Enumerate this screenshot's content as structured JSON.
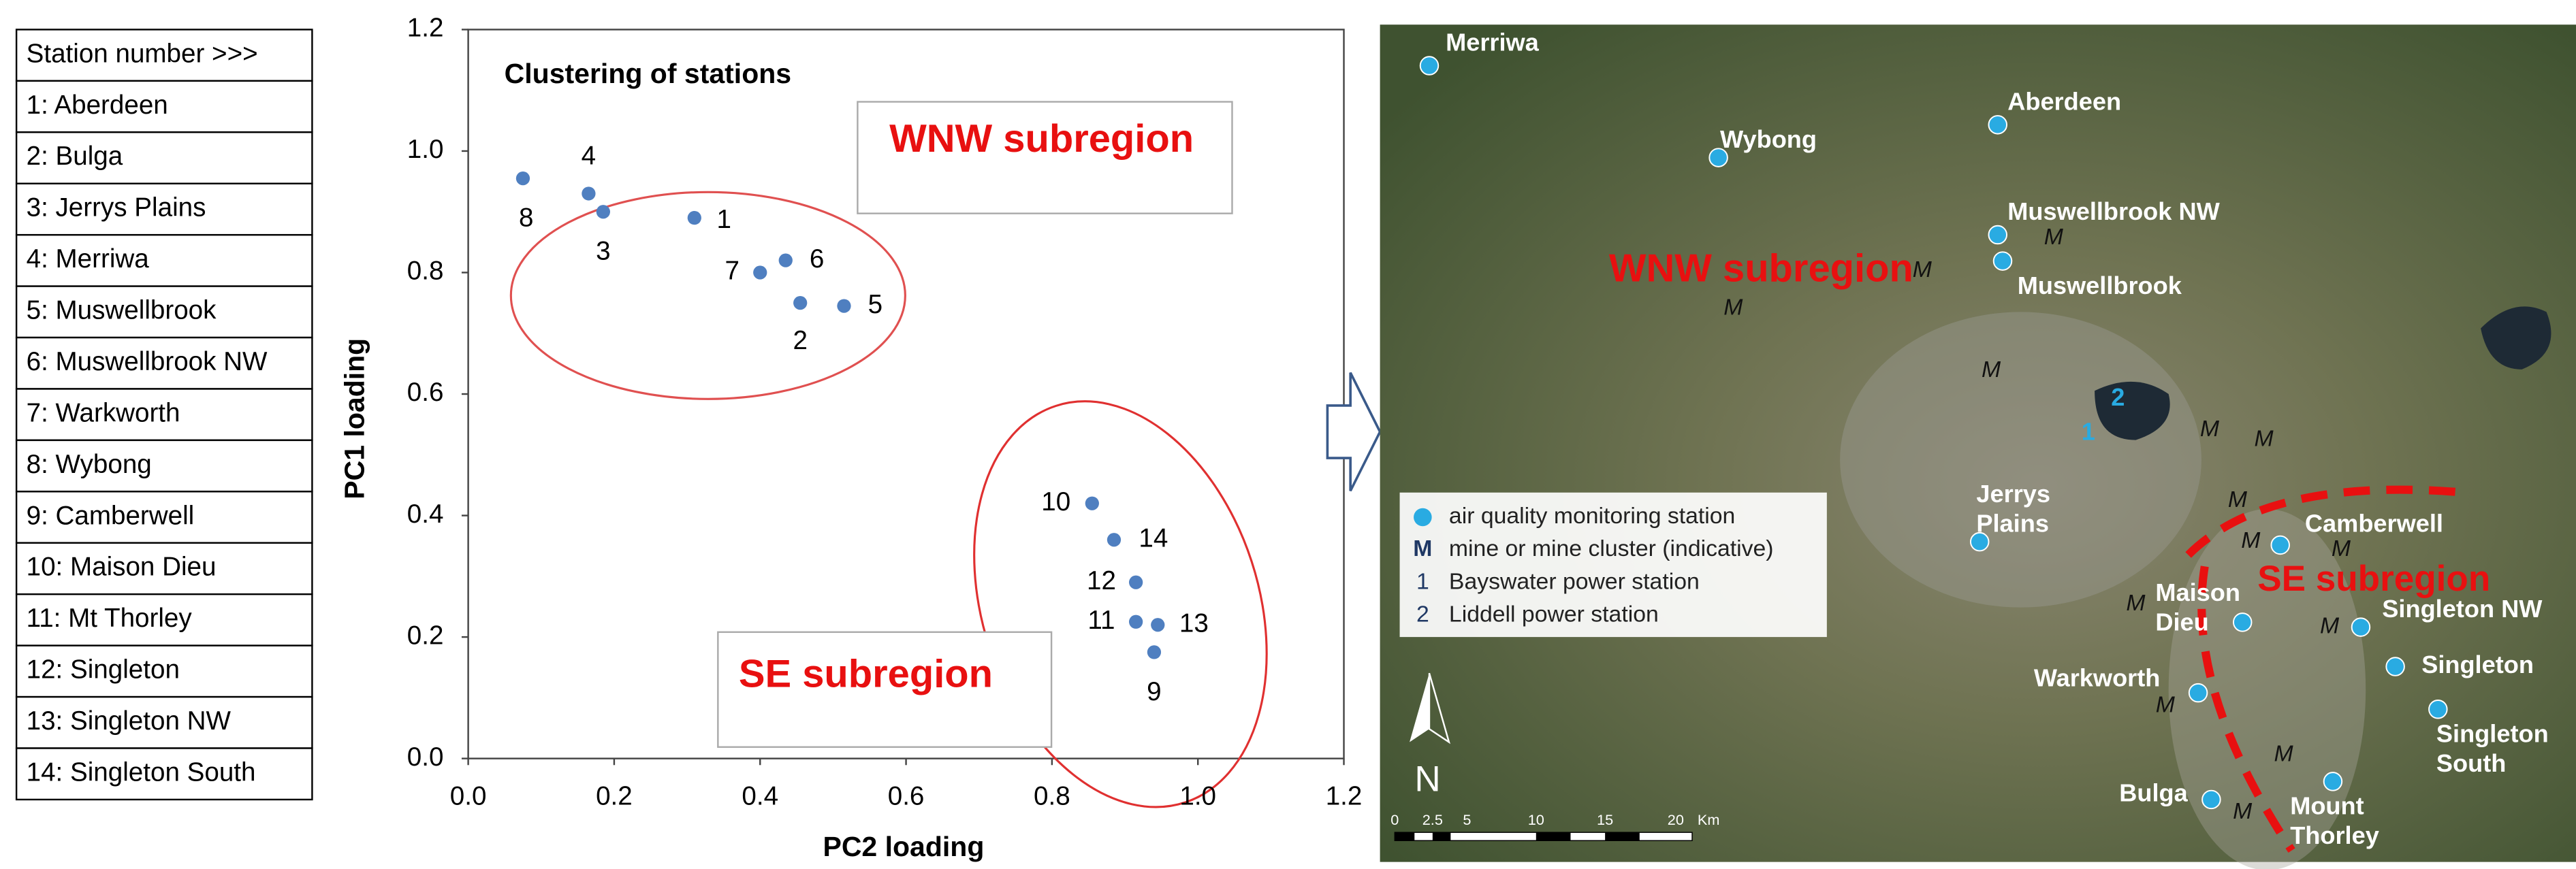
{
  "station_table": {
    "header": "Station number >>>",
    "rows": [
      "1: Aberdeen",
      "2: Bulga",
      "3: Jerrys Plains",
      "4: Merriwa",
      "5: Muswellbrook",
      "6: Muswellbrook NW",
      "7: Warkworth",
      "8: Wybong",
      "9: Camberwell",
      "10: Maison Dieu",
      "11: Mt Thorley",
      "12: Singleton",
      "13: Singleton NW",
      "14: Singleton South"
    ]
  },
  "chart_data": {
    "type": "scatter",
    "title": "Clustering of stations",
    "x_label": "PC2 loading",
    "y_label": "PC1 loading",
    "color": "#4f7fc0",
    "x": [
      0.31,
      0.455,
      0.185,
      0.165,
      0.515,
      0.435,
      0.4,
      0.075,
      0.94,
      0.855,
      0.915,
      0.915,
      0.945,
      0.885
    ],
    "y": [
      0.89,
      0.75,
      0.9,
      0.93,
      0.745,
      0.82,
      0.8,
      0.955,
      0.175,
      0.42,
      0.225,
      0.29,
      0.22,
      0.36
    ],
    "point_labels": [
      "1",
      "2",
      "3",
      "4",
      "5",
      "6",
      "7",
      "8",
      "9",
      "10",
      "11",
      "12",
      "13",
      "14"
    ],
    "xlim": [
      0,
      1.2
    ],
    "ylim": [
      0,
      1.2
    ],
    "xticks": [
      {
        "value": 0,
        "label": "0.0"
      },
      {
        "value": 0.2,
        "label": "0.2"
      },
      {
        "value": 0.4,
        "label": "0.4"
      },
      {
        "value": 0.6,
        "label": "0.6"
      },
      {
        "value": 0.8,
        "label": "0.8"
      },
      {
        "value": 1,
        "label": "1.0"
      },
      {
        "value": 1.2,
        "label": "1.2"
      }
    ],
    "yticks": [
      {
        "value": 0,
        "label": "0.0"
      },
      {
        "value": 0.2,
        "label": "0.2"
      },
      {
        "value": 0.4,
        "label": "0.4"
      },
      {
        "value": 0.6,
        "label": "0.6"
      },
      {
        "value": 0.8,
        "label": "0.8"
      },
      {
        "value": 1,
        "label": "1.0"
      },
      {
        "value": 1.2,
        "label": "1.2"
      }
    ],
    "annotations": [
      "WNW subregion",
      "SE subregion"
    ]
  },
  "map": {
    "stations": [
      [
        "Merriwa"
      ],
      [
        "Wybong"
      ],
      [
        "Aberdeen"
      ],
      [
        "Muswellbrook NW"
      ],
      [
        "Muswellbrook"
      ],
      [
        "Jerrys",
        "Plains"
      ],
      [
        "Camberwell"
      ],
      [
        "Maison",
        "Dieu"
      ],
      [
        "Singleton NW"
      ],
      [
        "Singleton"
      ],
      [
        "Singleton",
        "South"
      ],
      [
        "Warkworth"
      ],
      [
        "Bulga"
      ],
      [
        "Mount",
        "Thorley"
      ]
    ],
    "regions": [
      "WNW subregion",
      "SE subregion"
    ],
    "mine_marker": "M",
    "power_stations": [
      "1",
      "2"
    ],
    "legend": [
      {
        "text": "air quality monitoring station"
      },
      {
        "symbol": "M",
        "text": "mine or mine cluster (indicative)"
      },
      {
        "symbol": "1",
        "text": "Bayswater power station"
      },
      {
        "symbol": "2",
        "text": "Liddell power station"
      }
    ],
    "north": "N",
    "scale": [
      "0",
      "2.5",
      "5",
      "10",
      "15",
      "20",
      "Km"
    ]
  }
}
